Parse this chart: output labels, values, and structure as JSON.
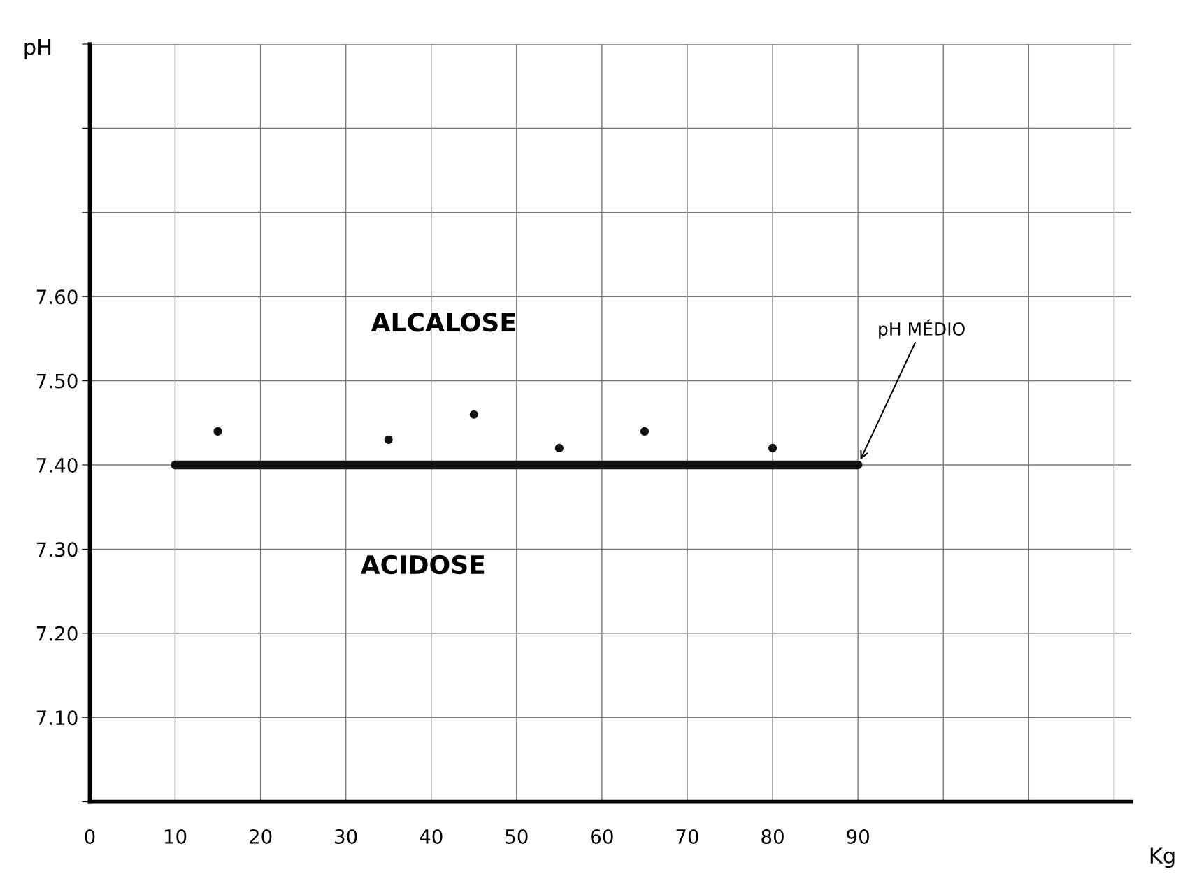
{
  "chart_data": {
    "type": "scatter",
    "xlabel": "Kg",
    "ylabel": "pH",
    "x": [
      15,
      35,
      45,
      55,
      65,
      80
    ],
    "series": [
      {
        "color": "#111111",
        "marker": "circle",
        "values": [
          7.44,
          7.43,
          7.46,
          7.42,
          7.44,
          7.42
        ]
      },
      {
        "type": "line",
        "color": "#111111",
        "x": [
          10,
          90
        ],
        "values": [
          7.4,
          7.4
        ]
      }
    ],
    "xlim": [
      0,
      122
    ],
    "ylim": [
      7.0,
      7.9
    ],
    "xticks": [
      0,
      10,
      20,
      30,
      40,
      50,
      60,
      70,
      80,
      90,
      {
        "value": 100,
        "label": null
      },
      {
        "value": 110,
        "label": null
      },
      {
        "value": 120,
        "label": null
      }
    ],
    "yticks": [
      {
        "value": 7.0,
        "label": null
      },
      {
        "value": 7.1,
        "label": "7.10"
      },
      {
        "value": 7.2,
        "label": "7.20"
      },
      {
        "value": 7.3,
        "label": "7.30"
      },
      {
        "value": 7.4,
        "label": "7.40"
      },
      {
        "value": 7.5,
        "label": "7.50"
      },
      {
        "value": 7.6,
        "label": "7.60"
      },
      {
        "value": 7.7,
        "label": null
      },
      {
        "value": 7.8,
        "label": null
      },
      {
        "value": 7.9,
        "label": null
      }
    ],
    "grid": true,
    "legend": false,
    "annotations": [
      "ALCALOSE",
      "ACIDOSE",
      "pH MÉDIO"
    ]
  }
}
